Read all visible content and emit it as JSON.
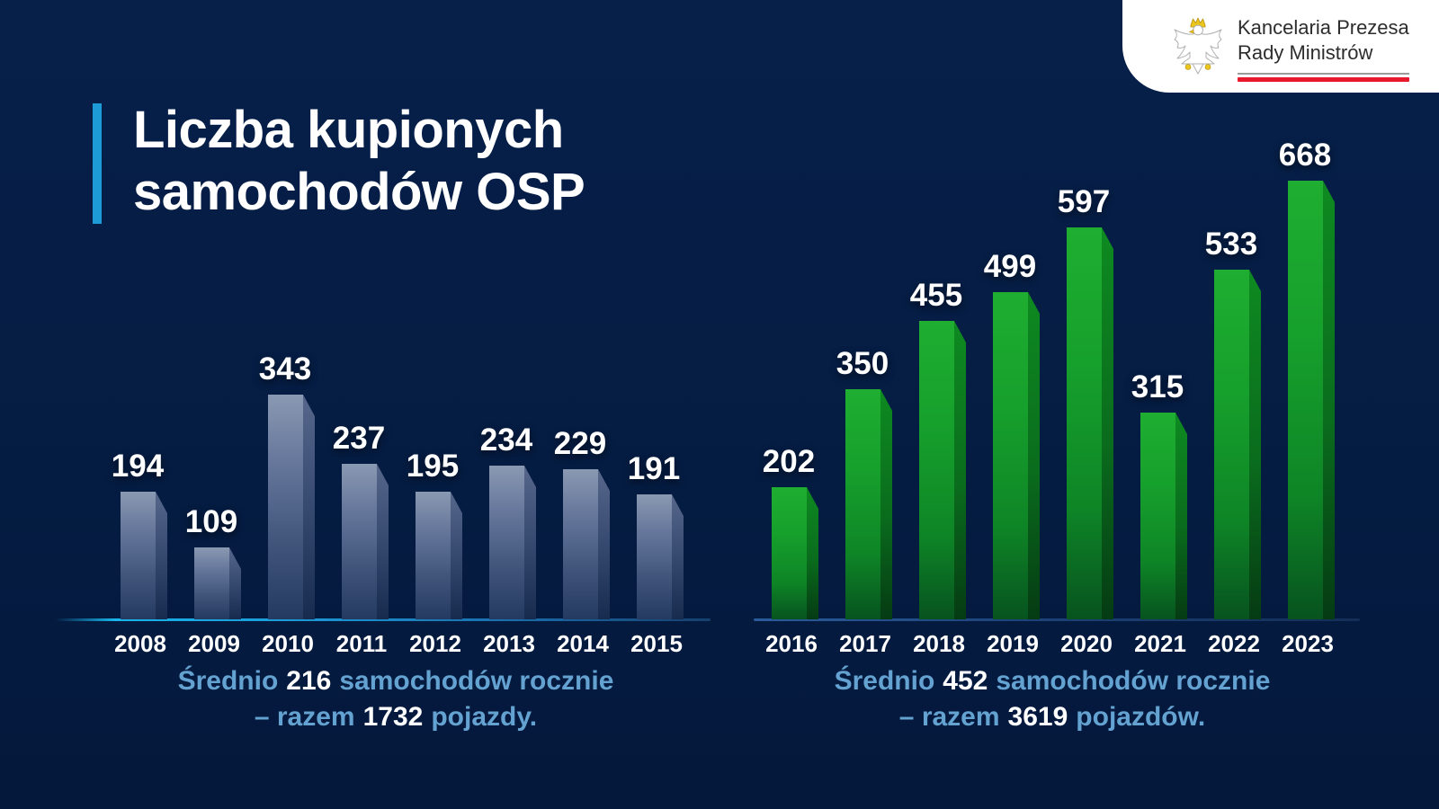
{
  "background_color": "#051c42",
  "logo": {
    "org_line1": "Kancelaria Prezesa",
    "org_line2": "Rady Ministrów",
    "eagle_icon": "polish-eagle-emblem",
    "card_bg": "#ffffff",
    "rule_gray": "#9b9b9b",
    "rule_red": "#e8192c"
  },
  "title": {
    "line1": "Liczba kupionych",
    "line2": "samochodów OSP",
    "accent_color": "#1d9bd7",
    "text_color": "#ffffff"
  },
  "chart_data": [
    {
      "type": "bar",
      "categories": [
        "2008",
        "2009",
        "2010",
        "2011",
        "2012",
        "2013",
        "2014",
        "2015"
      ],
      "values": [
        194,
        109,
        343,
        237,
        195,
        234,
        229,
        191
      ],
      "title": "",
      "xlabel": "",
      "ylabel": "",
      "ylim": [
        0,
        700
      ],
      "grid": false,
      "legend": false,
      "value_labels": true,
      "bar_style": "3d-steel-blue",
      "bar_color": "#5a6b8f",
      "axis_color": "#1b9cd8",
      "summary": {
        "lead": "Średnio",
        "average": "216",
        "mid": "samochodów rocznie",
        "dash_word": "– razem",
        "total": "1732",
        "tail": "pojazdy."
      }
    },
    {
      "type": "bar",
      "categories": [
        "2016",
        "2017",
        "2018",
        "2019",
        "2020",
        "2021",
        "2022",
        "2023"
      ],
      "values": [
        202,
        350,
        455,
        499,
        597,
        315,
        533,
        668
      ],
      "title": "",
      "xlabel": "",
      "ylabel": "",
      "ylim": [
        0,
        700
      ],
      "grid": false,
      "legend": false,
      "value_labels": true,
      "bar_style": "3d-green",
      "bar_color": "#14982a",
      "axis_color": "#1d4379",
      "summary": {
        "lead": "Średnio",
        "average": "452",
        "mid": "samochodów rocznie",
        "dash_word": "– razem",
        "total": "3619",
        "tail": "pojazdów."
      }
    }
  ]
}
